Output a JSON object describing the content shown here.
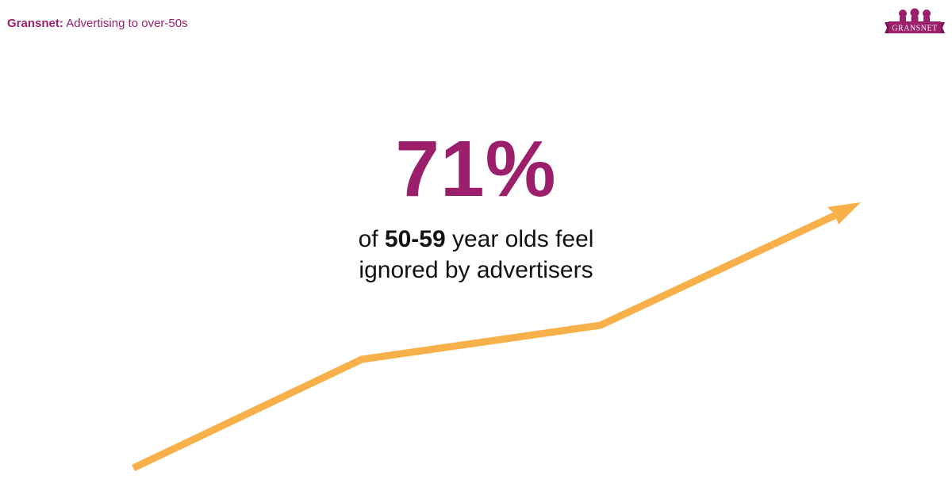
{
  "header": {
    "brand": "Gransnet:",
    "subtitle": "Advertising to over-50s"
  },
  "logo": {
    "text": "GRANSNET",
    "icon": "three-heads-logo"
  },
  "stat": {
    "value": "71%"
  },
  "caption": {
    "line1_prefix": "of ",
    "line1_bold": "50-59",
    "line1_suffix": " year olds feel",
    "line2": "ignored by advertisers"
  },
  "colors": {
    "brand": "#9b1f6b",
    "arrow": "#f7b04a",
    "text": "#111111"
  }
}
